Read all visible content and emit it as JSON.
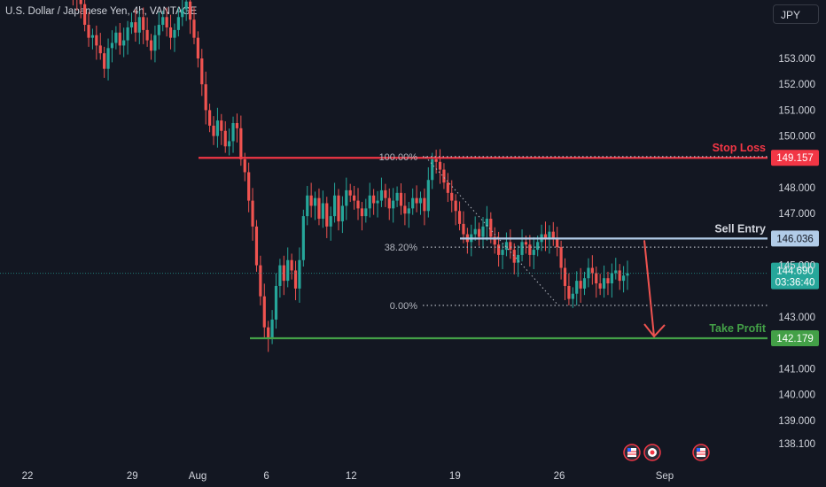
{
  "header": {
    "title": "U.S. Dollar / Japanese Yen, 4h, VANTAGE",
    "currency": "JPY"
  },
  "colors": {
    "background": "#131722",
    "up": "#26a69a",
    "down": "#ef5350",
    "stop_loss": "#f23645",
    "sell_entry": "#b2cce8",
    "take_profit": "#43a047",
    "current": "#26a69a",
    "grid_dots": "#b2b5be"
  },
  "chart_data": {
    "type": "candlestick",
    "symbol": "U.S. Dollar / Japanese Yen",
    "interval": "4h",
    "ylim": [
      137.7,
      155.8
    ],
    "y_ticks": [
      "153.000",
      "152.000",
      "151.000",
      "150.000",
      "148.000",
      "147.000",
      "145.000",
      "143.000",
      "141.000",
      "140.000",
      "139.000",
      "138.100"
    ],
    "x_ticks": [
      {
        "label": "22",
        "pos": 0.0
      },
      {
        "label": "29",
        "pos": 0.183
      },
      {
        "label": "Aug",
        "pos": 0.297
      },
      {
        "label": "6",
        "pos": 0.417
      },
      {
        "label": "12",
        "pos": 0.565
      },
      {
        "label": "19",
        "pos": 0.746
      },
      {
        "label": "26",
        "pos": 0.928
      },
      {
        "label": "Sep",
        "pos": 1.112
      }
    ],
    "candles_note": "approximate OHLC path, 4h bars",
    "close_path": [
      155.6,
      155.4,
      155.3,
      155.1,
      154.3,
      153.8,
      153.9,
      153.5,
      153.2,
      152.6,
      153.4,
      153.6,
      154.0,
      153.5,
      153.7,
      154.2,
      154.4,
      154.0,
      154.6,
      154.1,
      153.7,
      153.3,
      153.9,
      154.3,
      154.6,
      154.2,
      153.8,
      154.1,
      154.6,
      154.9,
      155.2,
      154.5,
      153.8,
      153.0,
      152.0,
      151.0,
      150.4,
      150.0,
      150.6,
      150.2,
      149.6,
      149.8,
      150.5,
      150.3,
      149.1,
      148.6,
      147.5,
      146.5,
      145.0,
      143.8,
      142.6,
      142.2,
      142.9,
      144.2,
      145.0,
      144.4,
      145.2,
      144.8,
      144.1,
      145.2,
      146.9,
      147.7,
      147.3,
      147.6,
      146.8,
      147.4,
      146.5,
      146.9,
      147.7,
      146.7,
      147.3,
      147.9,
      147.7,
      147.5,
      147.2,
      146.9,
      147.2,
      147.7,
      147.4,
      147.5,
      147.9,
      147.6,
      147.2,
      147.5,
      147.8,
      147.3,
      147.0,
      147.2,
      147.6,
      147.4,
      147.6,
      147.1,
      148.3,
      149.1,
      149.0,
      148.7,
      148.2,
      147.8,
      147.5,
      147.1,
      146.6,
      146.2,
      145.9,
      146.2,
      146.4,
      146.1,
      146.5,
      146.8,
      146.1,
      145.8,
      145.4,
      145.6,
      145.9,
      145.6,
      145.1,
      145.4,
      145.9,
      145.8,
      145.4,
      145.6,
      145.9,
      146.2,
      146.0,
      146.3,
      146.0,
      145.7,
      144.9,
      144.2,
      143.7,
      143.9,
      144.4,
      144.1,
      144.5,
      144.9,
      144.7,
      144.3,
      144.1,
      144.5,
      144.3,
      144.7,
      144.8,
      144.4,
      144.6,
      144.69
    ],
    "levels": [
      {
        "name": "Stop Loss",
        "value": 149.157,
        "label": "Stop Loss",
        "price_label": "149.157"
      },
      {
        "name": "Sell Entry",
        "value": 146.036,
        "label": "Sell Entry",
        "price_label": "146.036"
      },
      {
        "name": "Take Profit",
        "value": 142.179,
        "label": "Take Profit",
        "price_label": "142.179"
      }
    ],
    "fibonacci": [
      {
        "label": "100.00%",
        "value": 149.2
      },
      {
        "label": "38.20%",
        "value": 145.7
      },
      {
        "label": "0.00%",
        "value": 143.45
      }
    ],
    "current_price": {
      "value": 144.69,
      "label": "144.690",
      "countdown": "03:36:40"
    },
    "event_icons": 3,
    "grid": false
  }
}
